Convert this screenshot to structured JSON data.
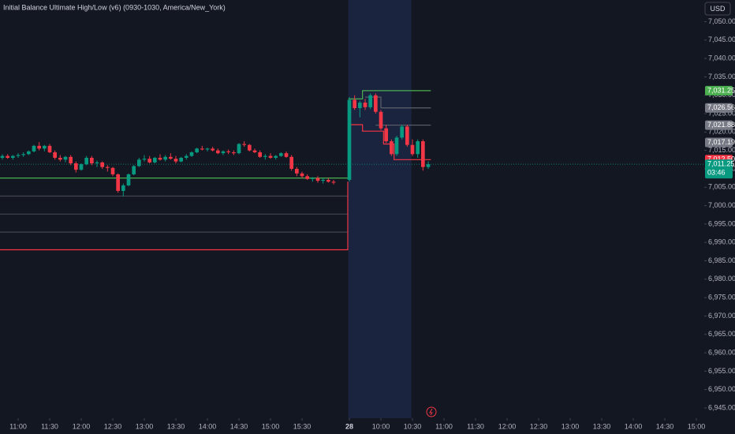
{
  "chart_data": {
    "type": "candlestick",
    "title": "Initial Balance Ultimate High/Low (v6) (0930-1030, America/New_York)",
    "currency": "USD",
    "countdown": "03:46",
    "up_color": "#089981",
    "down_color": "#f23645",
    "ylim": [
      6943.5,
      7055.25
    ],
    "yticks": [
      {
        "value": 6945,
        "label": "6,945.00"
      },
      {
        "value": 6950,
        "label": "6,950.00"
      },
      {
        "value": 6955,
        "label": "6,955.00"
      },
      {
        "value": 6960,
        "label": "6,960.00"
      },
      {
        "value": 6965,
        "label": "6,965.00"
      },
      {
        "value": 6970,
        "label": "6,970.00"
      },
      {
        "value": 6975,
        "label": "6,975.00"
      },
      {
        "value": 6980,
        "label": "6,980.00"
      },
      {
        "value": 6985,
        "label": "6,985.00"
      },
      {
        "value": 6990,
        "label": "6,990.00"
      },
      {
        "value": 6995,
        "label": "6,995.00"
      },
      {
        "value": 7000,
        "label": "7,000.00"
      },
      {
        "value": 7005,
        "label": "7,005.00"
      },
      {
        "value": 7010,
        "label": "7,010.00"
      },
      {
        "value": 7015,
        "label": "7,015.00"
      },
      {
        "value": 7020,
        "label": "7,020.00"
      },
      {
        "value": 7025,
        "label": "7,025.00"
      },
      {
        "value": 7030,
        "label": "7,030.00"
      },
      {
        "value": 7035,
        "label": "7,035.00"
      },
      {
        "value": 7040,
        "label": "7,040.00"
      },
      {
        "value": 7045,
        "label": "7,045.00"
      },
      {
        "value": 7050,
        "label": "7,050.00"
      }
    ],
    "xlim": [
      -3.45,
      130.5
    ],
    "xticks": [
      {
        "value": 0,
        "label": "11:00"
      },
      {
        "value": 6,
        "label": "11:30"
      },
      {
        "value": 12,
        "label": "12:00"
      },
      {
        "value": 18,
        "label": "12:30"
      },
      {
        "value": 24,
        "label": "13:00"
      },
      {
        "value": 30,
        "label": "13:30"
      },
      {
        "value": 36,
        "label": "14:00"
      },
      {
        "value": 42,
        "label": "14:30"
      },
      {
        "value": 48,
        "label": "15:00"
      },
      {
        "value": 54,
        "label": "15:30"
      },
      {
        "value": 63,
        "label": "28"
      },
      {
        "value": 69,
        "label": "10:00"
      },
      {
        "value": 75,
        "label": "10:30"
      },
      {
        "value": 81,
        "label": "11:00"
      },
      {
        "value": 87,
        "label": "11:30"
      },
      {
        "value": 93,
        "label": "12:00"
      },
      {
        "value": 99,
        "label": "12:30"
      },
      {
        "value": 105,
        "label": "13:00"
      },
      {
        "value": 111,
        "label": "13:30"
      },
      {
        "value": 117,
        "label": "14:00"
      },
      {
        "value": 123,
        "label": "14:30"
      },
      {
        "value": 129,
        "label": "15:00"
      }
    ],
    "session_band": [
      62.8,
      74.8
    ],
    "x": [
      -3,
      -2,
      -1,
      0,
      1,
      2,
      3,
      4,
      5,
      6,
      7,
      8,
      9,
      10,
      11,
      12,
      13,
      14,
      15,
      16,
      17,
      18,
      19,
      20,
      21,
      22,
      23,
      24,
      25,
      26,
      27,
      28,
      29,
      30,
      31,
      32,
      33,
      34,
      35,
      36,
      37,
      38,
      39,
      40,
      41,
      42,
      43,
      44,
      45,
      46,
      47,
      48,
      49,
      50,
      51,
      52,
      53,
      54,
      55,
      56,
      57,
      58,
      59,
      60,
      63,
      64,
      65,
      66,
      67,
      68,
      69,
      70,
      71,
      72,
      73,
      74,
      75,
      76,
      77,
      78
    ],
    "candles": [
      [
        7013,
        7014,
        7012.5,
        7013.5
      ],
      [
        7013.5,
        7014,
        7012.75,
        7013
      ],
      [
        7013,
        7013.75,
        7012.5,
        7013.5
      ],
      [
        7013.5,
        7014.25,
        7013,
        7013.75
      ],
      [
        7013.75,
        7014.5,
        7013.25,
        7014
      ],
      [
        7014,
        7015,
        7013.75,
        7014.75
      ],
      [
        7014.75,
        7016.5,
        7014.5,
        7016.25
      ],
      [
        7016.25,
        7017.25,
        7015,
        7015.5
      ],
      [
        7015.5,
        7016.5,
        7014.75,
        7016.25
      ],
      [
        7016.25,
        7016.75,
        7014.25,
        7014.5
      ],
      [
        7014.5,
        7015,
        7012.5,
        7013
      ],
      [
        7013,
        7013.75,
        7012,
        7012.5
      ],
      [
        7012.5,
        7013.5,
        7011.75,
        7013.25
      ],
      [
        7013.25,
        7013.75,
        7011,
        7011.5
      ],
      [
        7011.5,
        7012,
        7009,
        7009.75
      ],
      [
        7009.75,
        7011.5,
        7009.5,
        7011.25
      ],
      [
        7011.25,
        7013.5,
        7011,
        7013
      ],
      [
        7013,
        7013.5,
        7011,
        7011.5
      ],
      [
        7011.5,
        7012.25,
        7010.5,
        7011.75
      ],
      [
        7011.75,
        7012,
        7010,
        7010.5
      ],
      [
        7010.5,
        7011,
        7009.25,
        7010.25
      ],
      [
        7010.25,
        7010.5,
        7008,
        7008.5
      ],
      [
        7008.5,
        7008.75,
        7003.5,
        7004
      ],
      [
        7004,
        7006,
        7002.5,
        7005.5
      ],
      [
        7005.5,
        7008.75,
        7005.25,
        7008.5
      ],
      [
        7008.5,
        7011,
        7008.25,
        7010.75
      ],
      [
        7010.75,
        7013,
        7010.5,
        7012.5
      ],
      [
        7012.5,
        7013.75,
        7012,
        7012.75
      ],
      [
        7012.75,
        7013.5,
        7011.5,
        7011.75
      ],
      [
        7011.75,
        7013.25,
        7011.5,
        7013
      ],
      [
        7013,
        7014,
        7012.25,
        7012.5
      ],
      [
        7012.5,
        7013.75,
        7012,
        7013.25
      ],
      [
        7013.25,
        7014.25,
        7012.5,
        7012.75
      ],
      [
        7012.75,
        7013.5,
        7011.5,
        7012
      ],
      [
        7012,
        7013.25,
        7011.75,
        7013
      ],
      [
        7013,
        7014,
        7012.5,
        7013.5
      ],
      [
        7013.5,
        7014.75,
        7013.25,
        7014.5
      ],
      [
        7014.5,
        7015.75,
        7014.25,
        7015.5
      ],
      [
        7015.5,
        7016.25,
        7015,
        7015.25
      ],
      [
        7015.25,
        7015.75,
        7014.75,
        7015.5
      ],
      [
        7015.5,
        7016,
        7014.75,
        7015
      ],
      [
        7015,
        7015.5,
        7014,
        7014.25
      ],
      [
        7014.25,
        7015,
        7013.75,
        7014.75
      ],
      [
        7014.75,
        7015.25,
        7014,
        7014.5
      ],
      [
        7014.5,
        7015,
        7013.75,
        7014.25
      ],
      [
        7014.25,
        7017,
        7014,
        7016.75
      ],
      [
        7016.75,
        7017.5,
        7016,
        7016.5
      ],
      [
        7016.5,
        7016.75,
        7014.75,
        7015
      ],
      [
        7015,
        7015.5,
        7014.25,
        7014.5
      ],
      [
        7014.5,
        7015,
        7013,
        7013.25
      ],
      [
        7013.25,
        7014,
        7012.5,
        7013.5
      ],
      [
        7013.5,
        7014.25,
        7012.75,
        7013
      ],
      [
        7013,
        7013.75,
        7012.5,
        7013.5
      ],
      [
        7013.5,
        7014.5,
        7013.25,
        7014.25
      ],
      [
        7014.25,
        7014.75,
        7013,
        7013.25
      ],
      [
        7013.25,
        7013.75,
        7009.5,
        7010
      ],
      [
        7010,
        7010.5,
        7008,
        7008.75
      ],
      [
        7008.75,
        7009.25,
        7007.5,
        7008
      ],
      [
        7008,
        7008.5,
        7007,
        7007.25
      ],
      [
        7007.25,
        7007.75,
        7006.5,
        7007.5
      ],
      [
        7007.5,
        7008,
        7006.25,
        7006.75
      ],
      [
        7006.75,
        7007.5,
        7006,
        7007
      ],
      [
        7007,
        7007.5,
        7006.25,
        7006.5
      ],
      [
        7006.5,
        7007,
        7005.75,
        7006.25
      ],
      [
        7007,
        7029.5,
        7006.5,
        7028.75
      ],
      [
        7028.75,
        7030,
        7026,
        7026.5
      ],
      [
        7026.5,
        7028.5,
        7024,
        7028
      ],
      [
        7028,
        7029,
        7026,
        7026.75
      ],
      [
        7026.75,
        7030.5,
        7026.25,
        7030
      ],
      [
        7030,
        7030.5,
        7025,
        7025.5
      ],
      [
        7025.5,
        7026,
        7020.5,
        7021
      ],
      [
        7021,
        7022,
        7017,
        7017.5
      ],
      [
        7017.5,
        7018,
        7013.5,
        7014
      ],
      [
        7014,
        7019,
        7013.5,
        7018.5
      ],
      [
        7018.5,
        7022,
        7018,
        7021.5
      ],
      [
        7021.5,
        7022,
        7016,
        7016.5
      ],
      [
        7016.5,
        7018,
        7013.5,
        7014
      ],
      [
        7014,
        7018,
        7013,
        7017.5
      ],
      [
        7017.5,
        7018,
        7009.5,
        7010.5
      ],
      [
        7010.5,
        7012,
        7010,
        7011.25
      ]
    ],
    "lines": [
      {
        "color": "#4caf50",
        "x": [
          -3.45,
          62.7
        ],
        "values": [
          7007.5,
          7007.5
        ]
      },
      {
        "color": "#434651",
        "x": [
          -3.45,
          62.7
        ],
        "values": [
          7002.6,
          7002.6
        ]
      },
      {
        "color": "#434651",
        "x": [
          -3.45,
          62.7
        ],
        "values": [
          6997.7,
          6997.7
        ]
      },
      {
        "color": "#434651",
        "x": [
          -3.45,
          62.7
        ],
        "values": [
          6992.8,
          6992.8
        ]
      },
      {
        "color": "#f23645",
        "x": [
          -3.45,
          62.7,
          62.7
        ],
        "values": [
          6988,
          6988,
          7006.5
        ]
      },
      {
        "color": "#4caf50",
        "x": [
          62.8,
          65.5,
          65.5,
          78.5
        ],
        "values": [
          7029,
          7029,
          7031.25,
          7031.25
        ]
      },
      {
        "color": "#f23645",
        "x": [
          62.8,
          65.5,
          65.5,
          69.5,
          69.5,
          71.5,
          71.5,
          78.5
        ],
        "values": [
          7022,
          7022,
          7020.25,
          7020.25,
          7016.75,
          7016.75,
          7012.5,
          7012.5
        ]
      },
      {
        "color": "#5d606b",
        "x": [
          66,
          69,
          69,
          78.5
        ],
        "values": [
          7029.5,
          7029.5,
          7026.56,
          7026.56
        ]
      },
      {
        "color": "#5d606b",
        "x": [
          68,
          78.5
        ],
        "values": [
          7021.88,
          7021.88
        ]
      },
      {
        "color": "#089981",
        "x": [
          -3.45,
          130.5
        ],
        "values": [
          7011.25,
          7011.25
        ],
        "dash": true
      }
    ],
    "price_labels": [
      {
        "value": 7031.25,
        "label": "7,031.25",
        "color": "#4caf50"
      },
      {
        "value": 7026.56,
        "label": "7,026.56",
        "color": "#787b86"
      },
      {
        "value": 7021.88,
        "label": "7,021.88",
        "color": "#787b86"
      },
      {
        "value": 7017.19,
        "label": "7,017.19",
        "color": "#787b86"
      },
      {
        "value": 7012.5,
        "label": "7,012.50",
        "color": "#f23645"
      },
      {
        "value": 7011.25,
        "label": "7,011.25",
        "color": "#089981"
      }
    ]
  }
}
